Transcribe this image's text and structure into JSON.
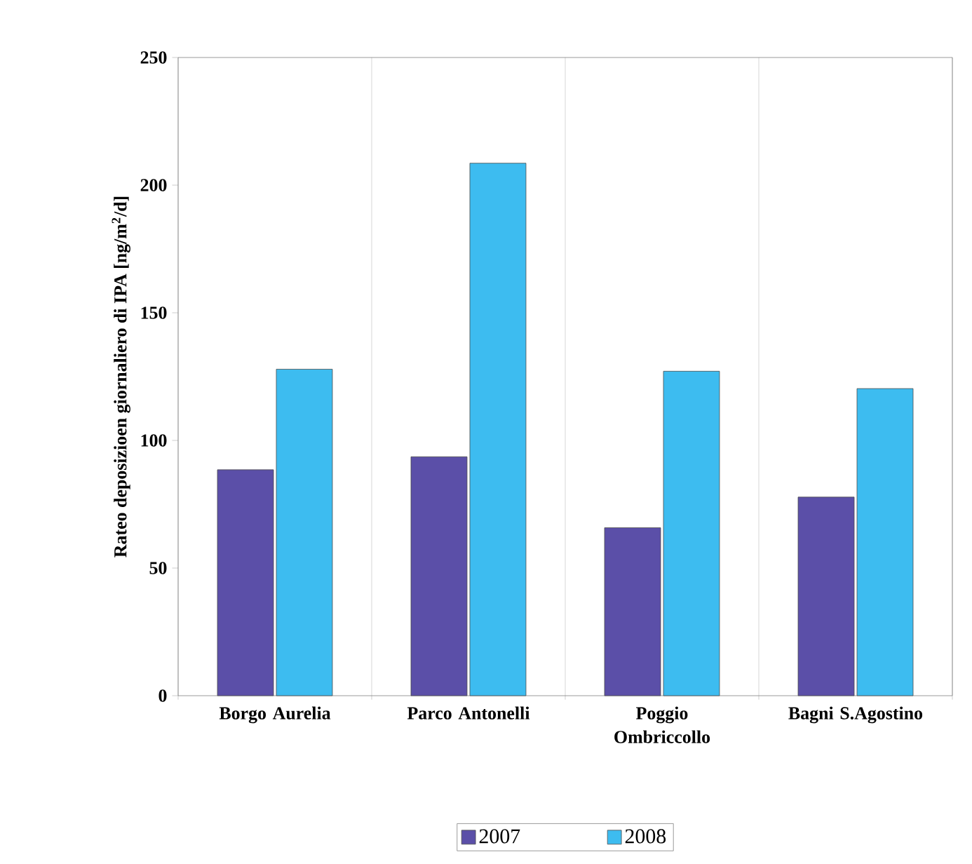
{
  "chart_data": {
    "type": "bar",
    "ylabel": "Rateo deposizioen giornaliero di IPA [ng/m$^{2}$/d]",
    "categories": [
      "Borgo Aurelia",
      "Parco Antonelli",
      "Poggio Ombriccollo",
      "Bagni S.Agostino"
    ],
    "series": [
      {
        "name": "2007",
        "color": "#5b4fa8",
        "values": [
          88.5,
          93.6,
          65.8,
          77.8
        ]
      },
      {
        "name": "2008",
        "color": "#3dbcf0",
        "values": [
          127.9,
          208.6,
          127.1,
          120.3
        ]
      }
    ],
    "ylim": [
      0,
      250
    ],
    "yticks": [
      0,
      50,
      100,
      150,
      200,
      250
    ],
    "grid": "x",
    "legend": "bottom"
  }
}
